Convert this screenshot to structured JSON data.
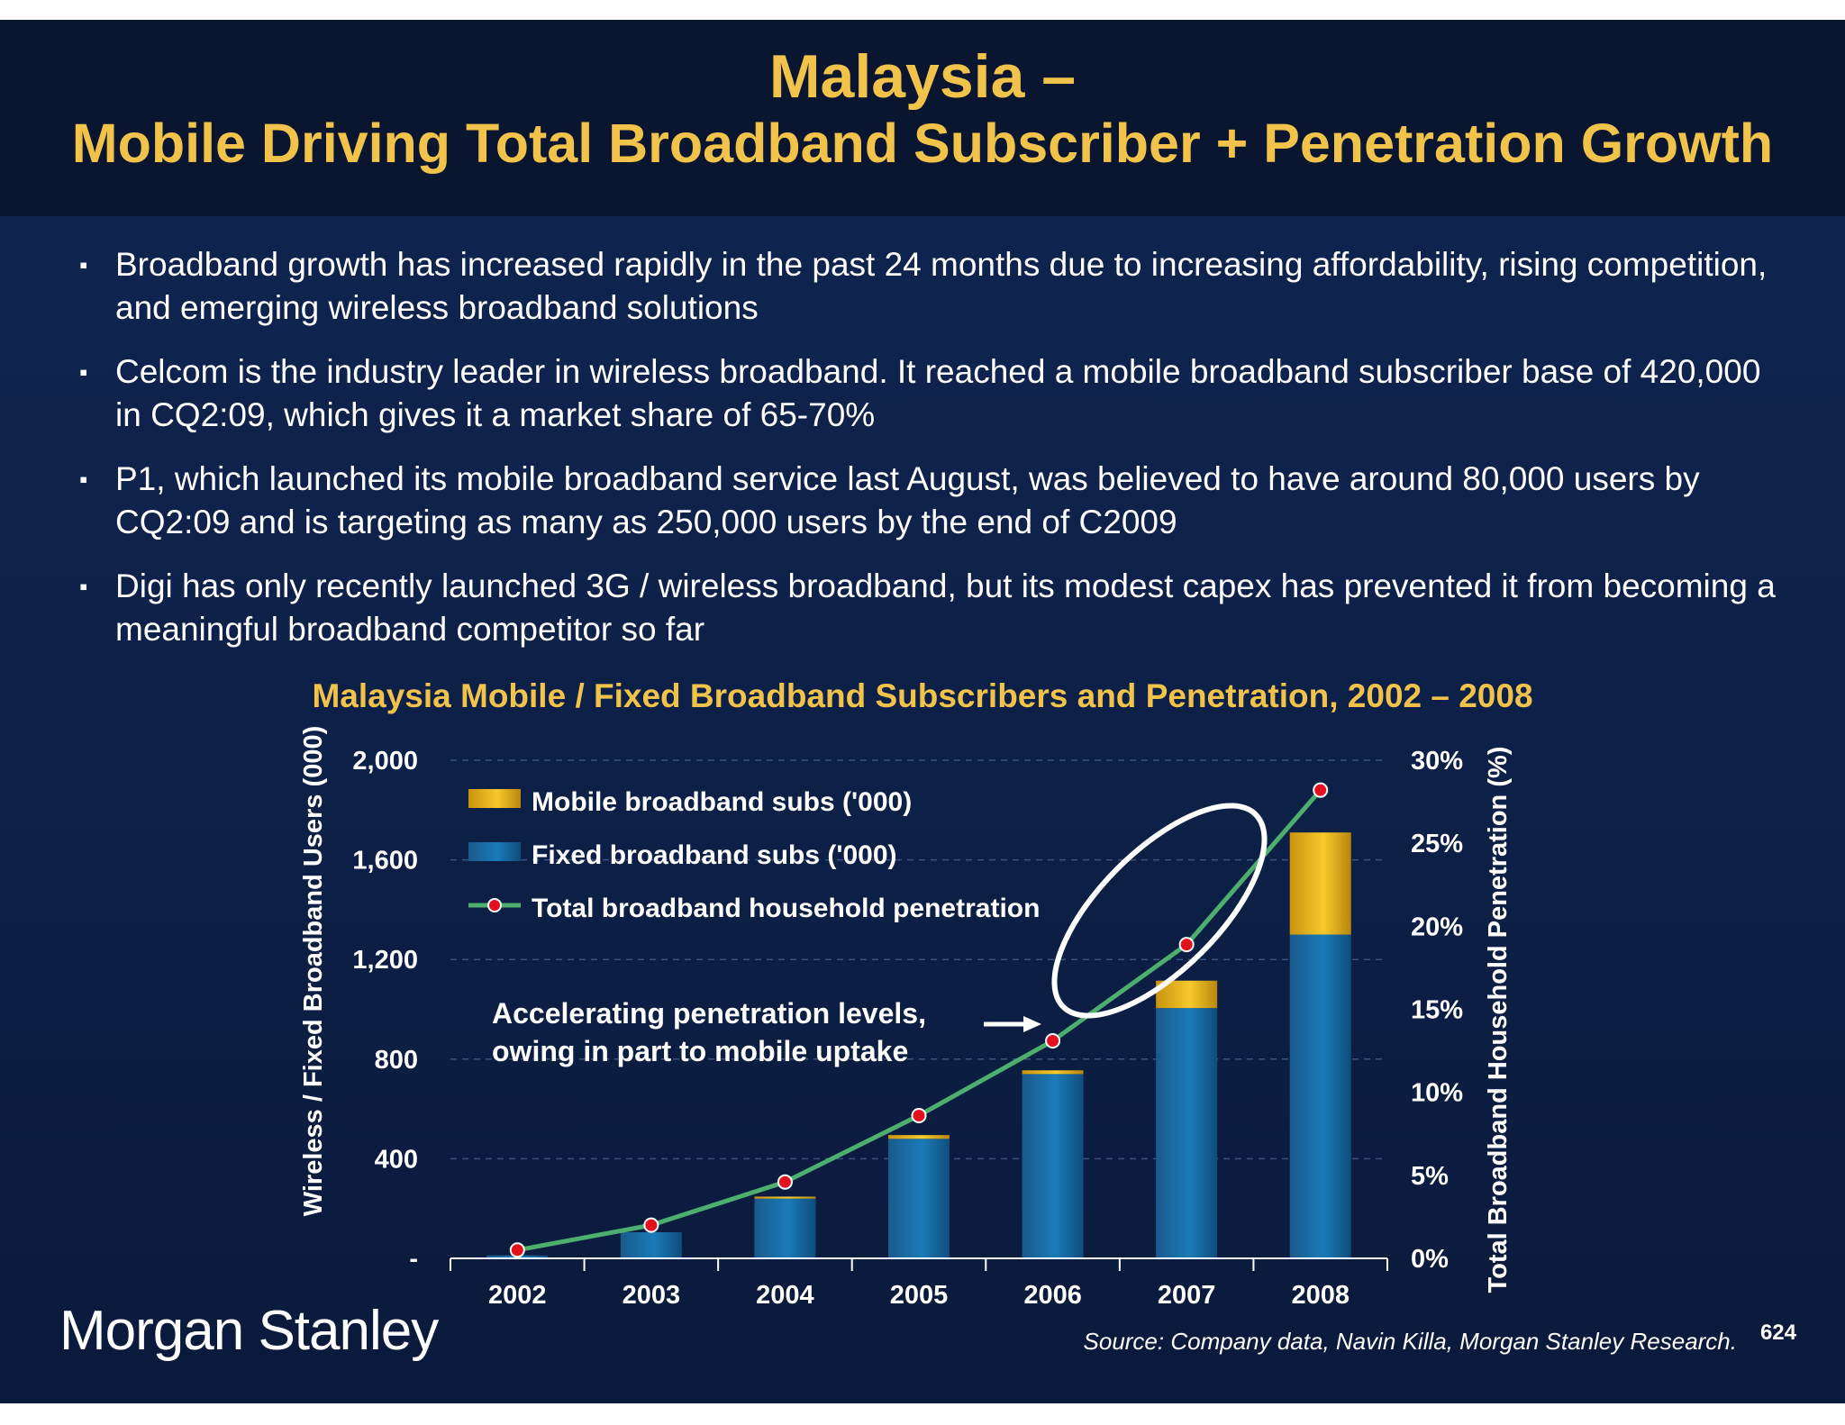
{
  "slide": {
    "title_line1": "Malaysia –",
    "title_line2": "Mobile Driving Total Broadband Subscriber + Penetration Growth",
    "bullets": [
      "Broadband growth has increased rapidly in the past 24 months due to increasing affordability, rising competition, and emerging wireless broadband solutions",
      "Celcom is the industry leader in wireless broadband.  It reached a mobile broadband subscriber base of 420,000 in CQ2:09, which gives it a market share of 65-70%",
      "P1, which launched its mobile broadband service last August, was believed to have around 80,000 users by CQ2:09 and is targeting as many as 250,000 users by the end of C2009",
      "Digi has only recently launched 3G / wireless broadband, but its modest capex has prevented it from becoming a meaningful broadband competitor so far"
    ],
    "bullet_marker": "▪",
    "logo_text": "Morgan Stanley",
    "source": "Source: Company data, Navin Killa, Morgan Stanley Research.",
    "page_number": "624"
  },
  "colors": {
    "title": "#f2c34a",
    "fixed_bar": "#1670a8",
    "mobile_bar": "#f2c230",
    "penetration_line": "#4caf6e",
    "marker_fill": "#e3101e"
  },
  "chart_data": {
    "type": "bar",
    "title": "Malaysia Mobile / Fixed Broadband Subscribers and Penetration, 2002 – 2008",
    "categories": [
      "2002",
      "2003",
      "2004",
      "2005",
      "2006",
      "2007",
      "2008"
    ],
    "stacked": true,
    "ylabel": "Wireless / Fixed Broadband Users (000)",
    "y2label": "Total Broadband Household Penetration (%)",
    "ylim": [
      0,
      2000
    ],
    "y2lim": [
      0,
      30
    ],
    "yticks": [
      "-",
      "400",
      "800",
      "1,200",
      "1,600",
      "2,000"
    ],
    "y2ticks": [
      "0%",
      "5%",
      "10%",
      "15%",
      "20%",
      "25%",
      "30%"
    ],
    "grid": "dashed horizontal",
    "legend_position": "top-left",
    "series": [
      {
        "name": "Fixed broadband subs ('000)",
        "type": "bar",
        "axis": "left",
        "values": [
          12,
          105,
          240,
          480,
          740,
          1005,
          1300
        ]
      },
      {
        "name": "Mobile broadband subs ('000)",
        "type": "bar",
        "axis": "left",
        "values": [
          0,
          0,
          8,
          15,
          15,
          110,
          410
        ]
      },
      {
        "name": "Total broadband household penetration",
        "type": "line",
        "axis": "right",
        "values": [
          0.5,
          2.0,
          4.6,
          8.6,
          13.1,
          18.9,
          28.2
        ]
      }
    ],
    "annotation": "Accelerating penetration levels, owing in part to mobile uptake"
  },
  "icons": [
    "bullet-square-icon",
    "arrow-right-icon",
    "highlight-ellipse-icon"
  ]
}
